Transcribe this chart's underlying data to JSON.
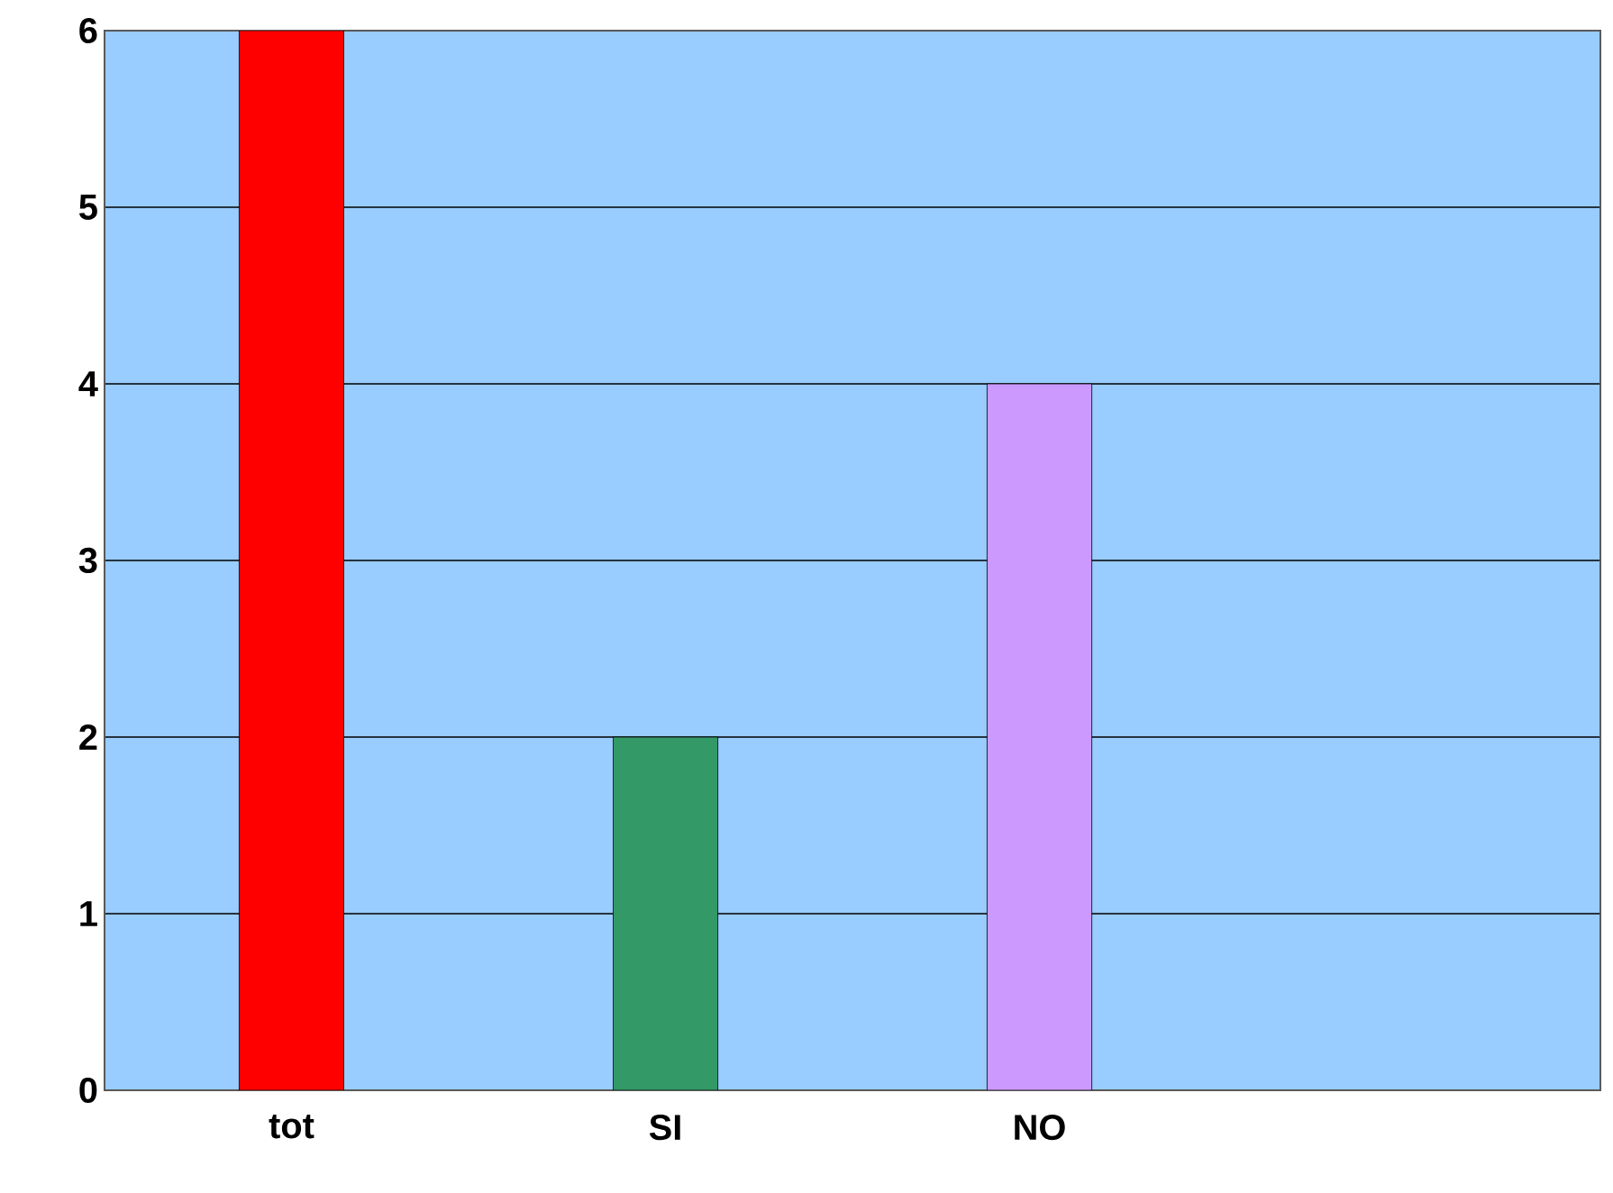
{
  "chart_data": {
    "type": "bar",
    "categories": [
      "tot",
      "SI",
      "NO",
      null
    ],
    "values": [
      6,
      2,
      4,
      null
    ],
    "colors": [
      "#ff0000",
      "#339966",
      "#cc99ff",
      "#999999"
    ],
    "ylim": [
      0,
      6
    ],
    "yticks": [
      0,
      1,
      2,
      3,
      4,
      5,
      6
    ],
    "grid": "y"
  }
}
